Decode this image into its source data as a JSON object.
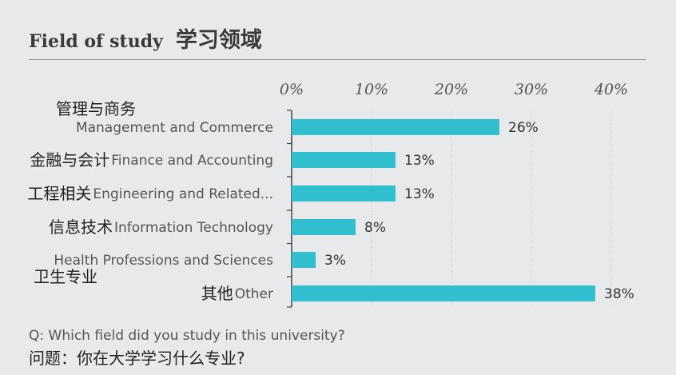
{
  "header": {
    "title_en": "Field of study",
    "title_zh": "学习领域"
  },
  "question": {
    "en": "Q: Which field did you study in this university?",
    "zh": "问题：你在大学学习什么专业?"
  },
  "colors": {
    "bar": "#2fbfce",
    "axis": "#444444",
    "grid": "#c4c6c8"
  },
  "chart_data": {
    "type": "bar",
    "orientation": "horizontal",
    "categories": [
      {
        "zh": "管理与商务",
        "en": "Management and Commerce"
      },
      {
        "zh": "金融与会计",
        "en": "Finance and Accounting"
      },
      {
        "zh": "工程相关",
        "en": "Engineering and Related..."
      },
      {
        "zh": "信息技术",
        "en": "Information Technology"
      },
      {
        "zh": "卫生专业",
        "en": "Health Professions and Sciences"
      },
      {
        "zh": "其他",
        "en": "Other"
      }
    ],
    "values": [
      26,
      13,
      13,
      8,
      3,
      38
    ],
    "value_labels": [
      "26%",
      "13%",
      "13%",
      "8%",
      "3%",
      "38%"
    ],
    "xlim": [
      0,
      40
    ],
    "ticks": [
      0,
      10,
      20,
      30,
      40
    ],
    "tick_labels": [
      "0%",
      "10%",
      "20%",
      "30%",
      "40%"
    ],
    "axis_position": "top",
    "grid": true
  }
}
